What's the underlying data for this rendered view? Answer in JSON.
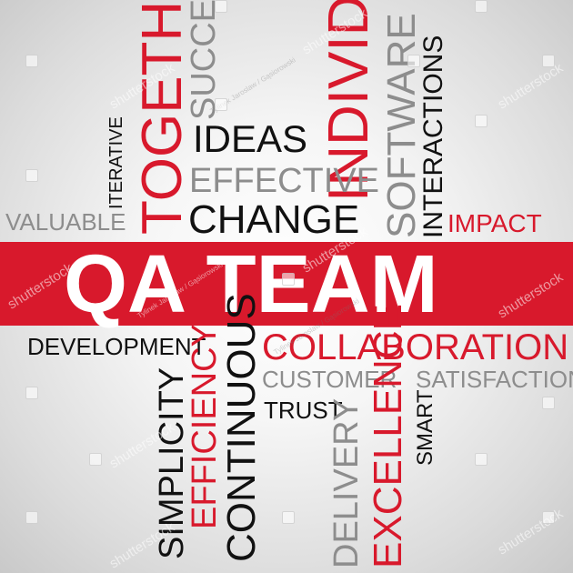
{
  "words": {
    "together": "TOGETHER",
    "success": "SUCCESS",
    "individual": "INDIVIDUAL",
    "software": "SOFTWARE",
    "interactions": "INTERACTIONS",
    "iterative": "ITERATIVE",
    "ideas": "IDEAS",
    "effective": "EFFECTIVE",
    "change": "CHANGE",
    "valuable": "VALUABLE",
    "impact": "IMPACT",
    "qa_team": "QA TEAM",
    "development": "DEVELOPMENT",
    "collaboration": "COLLABORATION",
    "customer": "CUSTOMER",
    "satisfaction": "SATISFACTION",
    "trust": "TRUST",
    "simplicity": "SIMPLICITY",
    "efficiency": "EFFICIENCY",
    "continuous": "CONTINUOUS",
    "delivery": "DELIVERY",
    "excellence": "EXCELLENCE",
    "smart": "SMART"
  },
  "watermark": {
    "text": "shutterstock",
    "credit": "Tylinek Jaroslaw / Gąsiorowski"
  },
  "colors": {
    "red": "#d8192c",
    "black": "#111111",
    "gray": "#8d8d8d",
    "band_text": "#ffffff"
  }
}
